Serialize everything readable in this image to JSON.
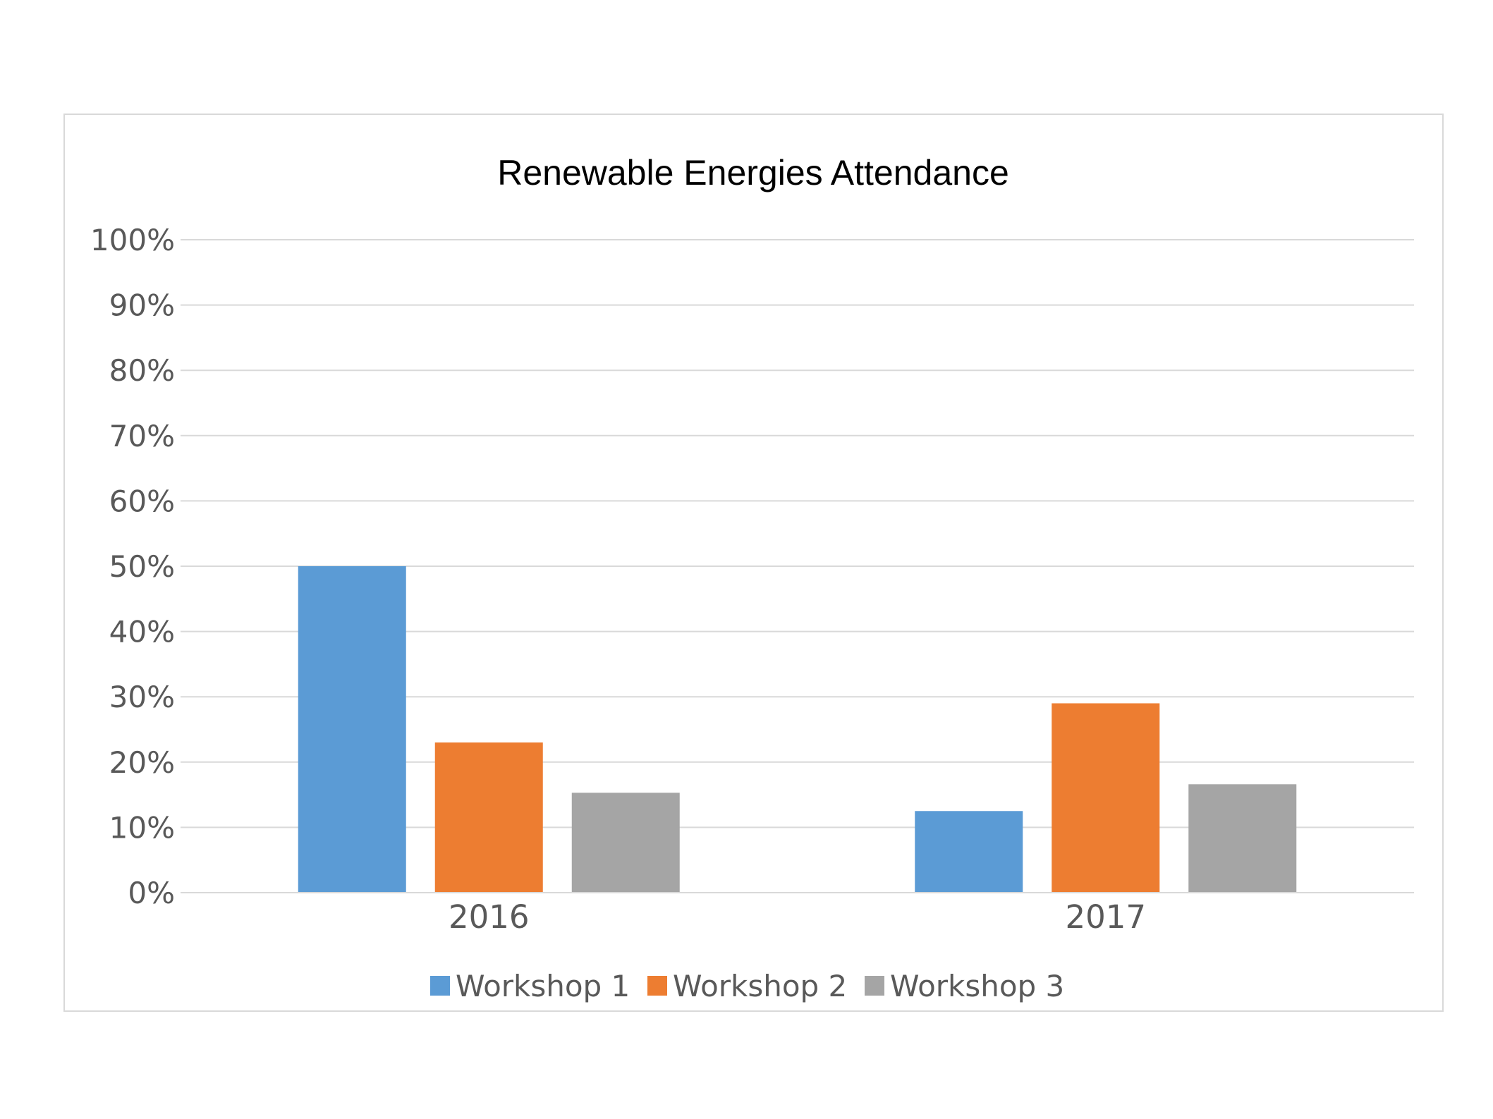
{
  "chart_data": {
    "type": "bar",
    "title": "Renewable Energies Attendance",
    "xlabel": "",
    "ylabel": "",
    "categories": [
      "2016",
      "2017"
    ],
    "series": [
      {
        "name": "Workshop 1",
        "values": [
          50,
          12.5
        ],
        "color": "#5b9bd5"
      },
      {
        "name": "Workshop 2",
        "values": [
          23,
          29
        ],
        "color": "#ed7d31"
      },
      {
        "name": "Workshop 3",
        "values": [
          15.3,
          16.6
        ],
        "color": "#a5a5a5"
      }
    ],
    "ylim": [
      0,
      100
    ],
    "yticks": [
      "0%",
      "10%",
      "20%",
      "30%",
      "40%",
      "50%",
      "60%",
      "70%",
      "80%",
      "90%",
      "100%"
    ],
    "grid": true,
    "legend_position": "bottom"
  }
}
